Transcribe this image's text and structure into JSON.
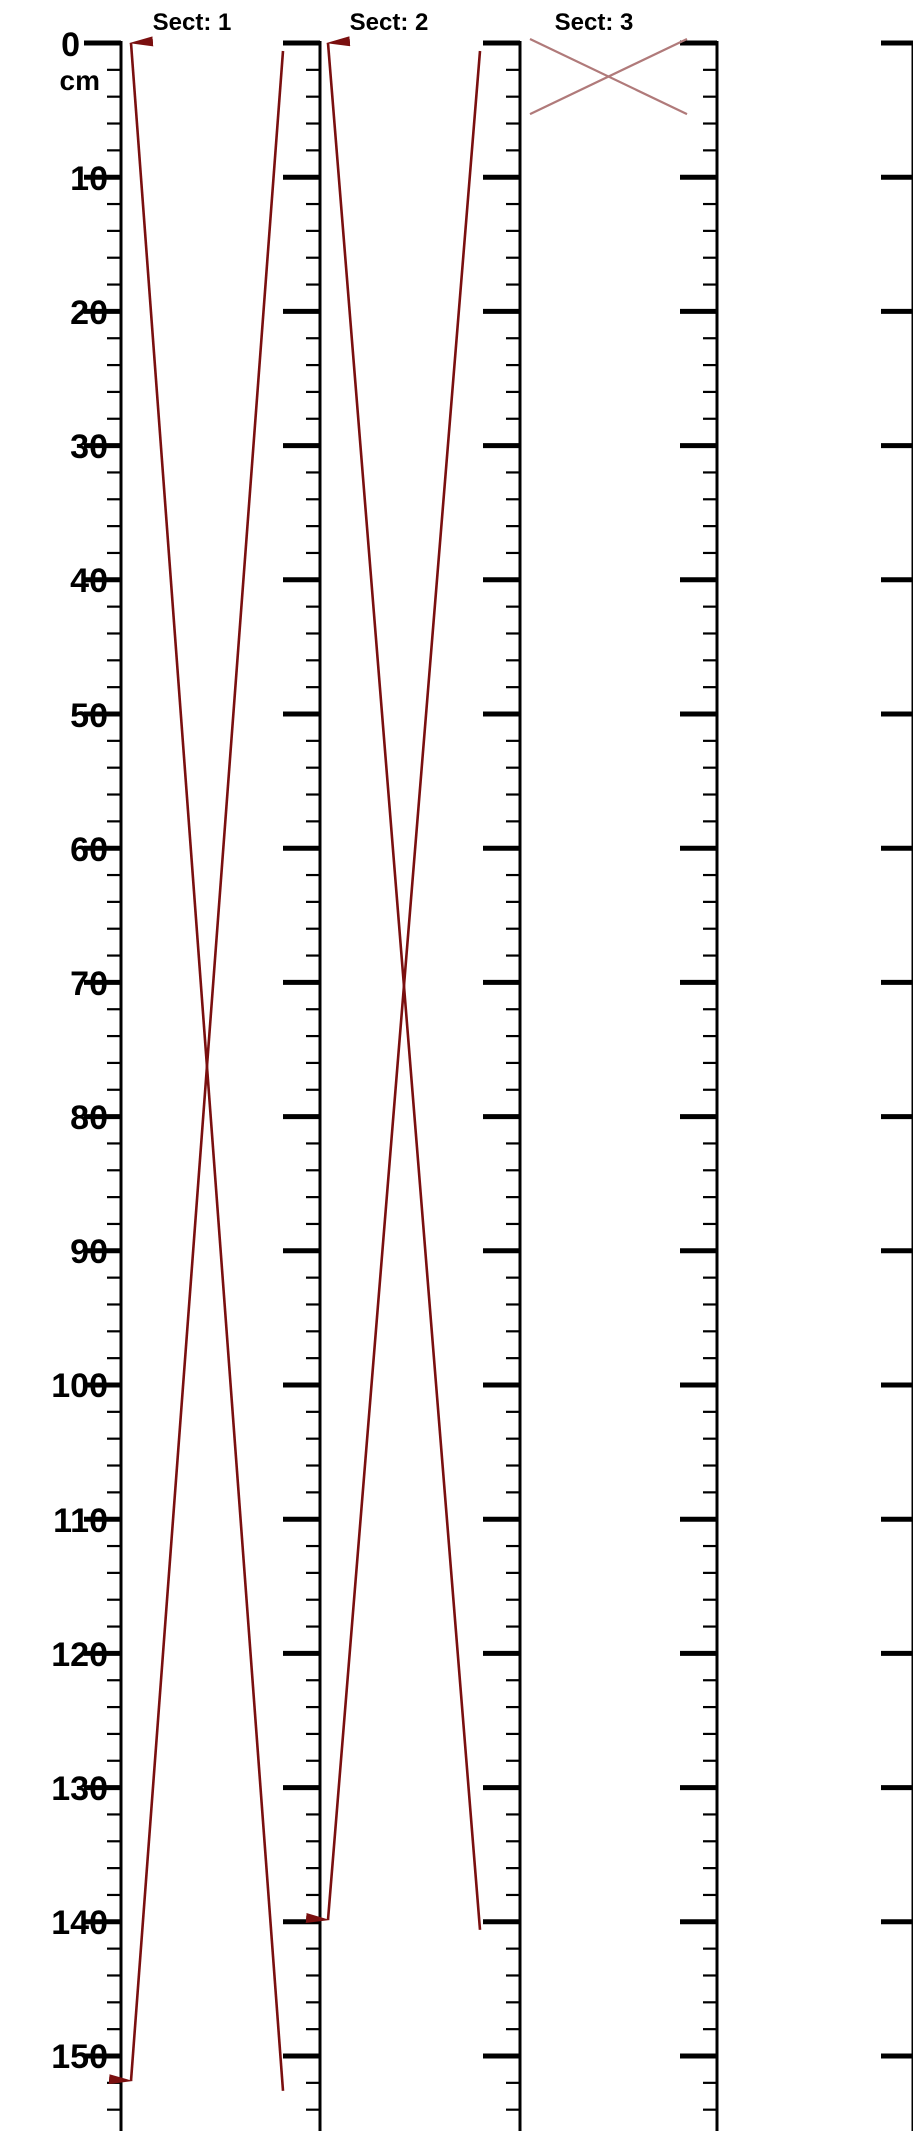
{
  "depth_axis": {
    "unit": "cm",
    "major_step": 10,
    "minor_step": 2,
    "max_depth": 157,
    "labels": [
      "0",
      "10",
      "20",
      "30",
      "40",
      "50",
      "60",
      "70",
      "80",
      "90",
      "100",
      "110",
      "120",
      "130",
      "140",
      "150"
    ]
  },
  "sections": [
    {
      "label": "Sect: 1",
      "top_cm": 0,
      "bottom_cm": 152,
      "traverse": "full",
      "faded": false
    },
    {
      "label": "Sect: 2",
      "top_cm": 0,
      "bottom_cm": 140,
      "traverse": "full",
      "faded": false
    },
    {
      "label": "Sect: 3",
      "top_cm": 0,
      "bottom_cm": 5,
      "traverse": "cross",
      "faded": true
    }
  ],
  "colors": {
    "traverse_line": "#7a0f0f",
    "traverse_line_faded": "#b07a7a",
    "scale": "#000000"
  }
}
